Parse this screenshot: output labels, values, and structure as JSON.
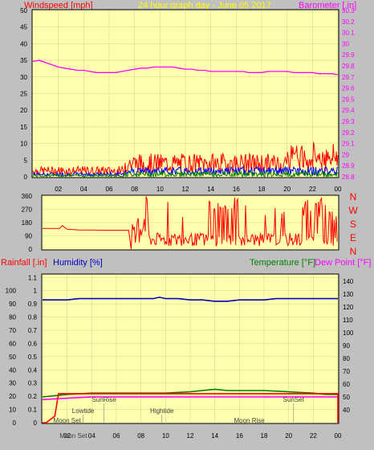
{
  "header": {
    "windspeed_label": "Windspeed [mph]",
    "title": "24 hour graph day - June 05 2017",
    "barometer_label": "Barometer [.in]"
  },
  "labels_bottom": {
    "rainfall": "Rainfall [.in]",
    "humidity": "Humidity [%]",
    "temperature": "Temperature [°F]",
    "dewpoint": "Dew Point [°F]"
  },
  "colors": {
    "plot_bg": "#ffffb0",
    "frame_bg": "#c0c0c0",
    "wind_gust": "#ff0000",
    "wind_avg": "#0000ff",
    "wind_low": "#008000",
    "barometer": "#ff00ff",
    "direction": "#ff0000",
    "humidity": "#0000c0",
    "temperature": "#008000",
    "dewpoint": "#ff00ff",
    "rain": "#ff0000",
    "windspeed_label": "#ff0000",
    "title_color": "#ffff00",
    "barometer_label": "#ff00ff"
  },
  "x_ticks": [
    "02",
    "04",
    "06",
    "08",
    "10",
    "12",
    "14",
    "16",
    "18",
    "20",
    "22",
    "00"
  ],
  "chart_data": [
    {
      "type": "line",
      "name": "wind-barometer",
      "y_left": {
        "ticks": [
          0,
          5,
          10,
          15,
          20,
          25,
          30,
          35,
          40,
          45,
          50
        ],
        "ylim": [
          0,
          50
        ]
      },
      "y_right": {
        "ticks": [
          "28.8",
          "28.9",
          "29",
          "29.1",
          "29.2",
          "29.3",
          "29.4",
          "29.5",
          "29.6",
          "29.7",
          "29.8",
          "29.9",
          "30",
          "30.1",
          "30.2",
          "30.3"
        ],
        "ylim": [
          28.8,
          30.3
        ]
      },
      "barometer": {
        "x": [
          0,
          0.5,
          1,
          1.5,
          2,
          2.5,
          3,
          3.5,
          4,
          4.5,
          5,
          5.5,
          6,
          6.5,
          7,
          7.5,
          8,
          8.5,
          9,
          9.5,
          10,
          10.5,
          11,
          11.5,
          12,
          12.5,
          13,
          13.5,
          14,
          14.5,
          15,
          15.5,
          16,
          16.5,
          17,
          17.5,
          18,
          18.5,
          19,
          19.5,
          20,
          20.5,
          21,
          21.5,
          22,
          22.5,
          23,
          23.5,
          24
        ],
        "values": [
          29.84,
          29.85,
          29.83,
          29.81,
          29.79,
          29.78,
          29.77,
          29.76,
          29.76,
          29.75,
          29.74,
          29.74,
          29.74,
          29.74,
          29.75,
          29.76,
          29.77,
          29.78,
          29.78,
          29.79,
          29.79,
          29.79,
          29.79,
          29.78,
          29.77,
          29.77,
          29.76,
          29.76,
          29.75,
          29.75,
          29.75,
          29.75,
          29.75,
          29.75,
          29.74,
          29.74,
          29.74,
          29.75,
          29.75,
          29.75,
          29.75,
          29.74,
          29.74,
          29.74,
          29.74,
          29.73,
          29.73,
          29.73,
          29.72
        ]
      },
      "wind": {
        "gust_range": [
          0,
          12
        ],
        "avg_range": [
          0,
          4
        ],
        "low_range": [
          0,
          2
        ]
      }
    },
    {
      "type": "line",
      "name": "wind-direction",
      "y_left": {
        "ticks": [
          0,
          90,
          180,
          270,
          360
        ],
        "ylim": [
          0,
          360
        ]
      },
      "y_right_letters": [
        "N",
        "W",
        "S",
        "E",
        "N"
      ],
      "direction": {
        "x": [
          0,
          1,
          1.4,
          1.6,
          2,
          3,
          4,
          5,
          6,
          7,
          7.2
        ],
        "values": [
          140,
          140,
          140,
          160,
          135,
          130,
          130,
          128,
          128,
          128,
          0
        ]
      }
    },
    {
      "type": "line",
      "name": "rain-humidity-temp",
      "y_left": {
        "ticks": [
          0,
          0.1,
          0.2,
          0.3,
          0.4,
          0.5,
          0.6,
          0.7,
          0.8,
          0.9,
          1,
          1.1
        ],
        "ylim": [
          0,
          1.12
        ]
      },
      "y_left_outer": {
        "ticks": [
          0,
          10,
          20,
          30,
          40,
          50,
          60,
          70,
          80,
          90,
          100
        ],
        "ylim": [
          0,
          100
        ]
      },
      "y_right": {
        "ticks": [
          40,
          50,
          60,
          70,
          80,
          90,
          100,
          110,
          120,
          130,
          140
        ],
        "ylim": [
          30,
          145
        ]
      },
      "humidity": {
        "x": [
          0,
          1,
          2,
          3,
          4,
          5,
          6,
          7,
          8,
          9,
          9.5,
          10,
          11,
          12,
          13,
          14,
          15,
          16,
          17,
          18,
          19,
          20,
          21,
          22,
          23,
          24
        ],
        "values": [
          93,
          93,
          93,
          94,
          94,
          94,
          94,
          94,
          94,
          94,
          95,
          94,
          94,
          93,
          93,
          92,
          92,
          93,
          93,
          93,
          94,
          94,
          94,
          94,
          94,
          94
        ]
      },
      "temperature": {
        "x": [
          0,
          2,
          4,
          6,
          8,
          10,
          12,
          13,
          14,
          15,
          16,
          18,
          20,
          22,
          23,
          24
        ],
        "values": [
          50,
          52,
          53,
          53,
          53,
          53,
          54,
          55,
          56,
          55,
          55,
          55,
          54,
          53,
          52,
          52
        ]
      },
      "dewpoint": {
        "x": [
          0,
          2,
          4,
          6,
          8,
          10,
          12,
          14,
          16,
          18,
          20,
          22,
          24
        ],
        "values": [
          48,
          49,
          50,
          50,
          50,
          50,
          50,
          50,
          50,
          50,
          50,
          50,
          50
        ]
      },
      "rain": {
        "x": [
          0,
          0.3,
          1,
          1.3,
          1.4,
          24,
          24
        ],
        "values": [
          0,
          0,
          0.05,
          0.22,
          0.22,
          0.22,
          0
        ]
      },
      "annotations": [
        {
          "label": "SunRise",
          "x": 5.0,
          "row": 1
        },
        {
          "label": "Lowtide",
          "x": 3.3,
          "row": 2
        },
        {
          "label": "Moon Set",
          "x": 2.0,
          "row": 3
        },
        {
          "label": "Hightide",
          "x": 9.7,
          "row": 2
        },
        {
          "label": "Moon Rise",
          "x": 16.8,
          "row": 3
        },
        {
          "label": "SunSet",
          "x": 20.4,
          "row": 1
        },
        {
          "label": "Moon Set",
          "x": 2.5,
          "row": 4
        }
      ]
    }
  ]
}
